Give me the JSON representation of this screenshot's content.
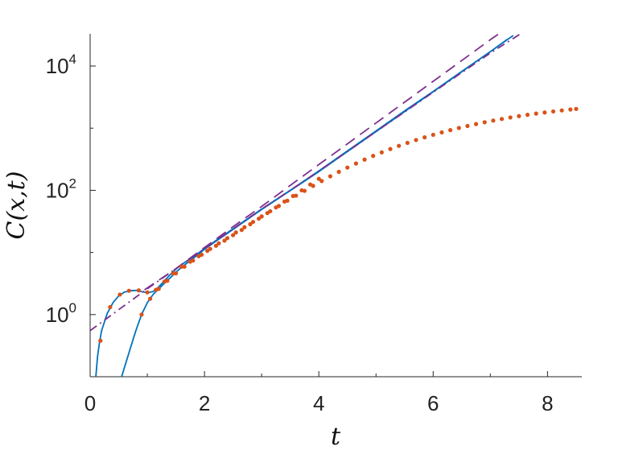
{
  "chart_data": {
    "type": "line",
    "title": "",
    "xlabel": "t",
    "ylabel": "C(x,t)",
    "xlim": [
      0,
      8.6
    ],
    "ylim": [
      0.1,
      33000
    ],
    "yscale": "log",
    "grid": false,
    "x_ticks": [
      {
        "value": 0,
        "label": "0"
      },
      {
        "value": 2,
        "label": "2"
      },
      {
        "value": 4,
        "label": "4"
      },
      {
        "value": 6,
        "label": "6"
      },
      {
        "value": 8,
        "label": "8"
      }
    ],
    "y_ticks": [
      {
        "value": 1,
        "base": "10",
        "exp": "0"
      },
      {
        "value": 100,
        "base": "10",
        "exp": "2"
      },
      {
        "value": 10000,
        "base": "10",
        "exp": "4"
      }
    ],
    "colors": {
      "solid": "#0072BD",
      "markers": "#D95319",
      "dashed": "#7E2F8E",
      "axis": "#262626"
    },
    "series": [
      {
        "style": "solid",
        "x": [
          0.1,
          0.13,
          0.16,
          0.2,
          0.3,
          0.4,
          0.5,
          0.6,
          0.7,
          0.8,
          0.9,
          1.0,
          1.1,
          1.2,
          1.3,
          1.4,
          1.5,
          1.6,
          1.8,
          2.0,
          2.2,
          2.5,
          3.0,
          3.5,
          4.0,
          4.5,
          5.0,
          5.5,
          6.0,
          6.5,
          7.0,
          7.3
        ],
        "y": [
          0.1,
          0.21,
          0.34,
          0.55,
          1.05,
          1.55,
          2.0,
          2.3,
          2.42,
          2.45,
          2.35,
          2.25,
          2.35,
          2.8,
          3.5,
          4.4,
          5.4,
          6.4,
          8.5,
          11.5,
          15.5,
          24,
          50,
          100,
          205,
          430,
          900,
          1900,
          3900,
          8200,
          17000,
          27000
        ]
      },
      {
        "style": "solid",
        "x": [
          0.55,
          0.6,
          0.7,
          0.8,
          0.9,
          1.0,
          1.1,
          1.2,
          1.3,
          1.4,
          1.5,
          1.6,
          1.8,
          2.0,
          2.2,
          2.5,
          3.0,
          3.5,
          4.0,
          4.5,
          5.0,
          5.5,
          6.0,
          6.5,
          7.0,
          7.4
        ],
        "y": [
          0.1,
          0.14,
          0.28,
          0.55,
          1.0,
          1.55,
          2.1,
          2.6,
          3.2,
          3.9,
          4.8,
          5.8,
          8.0,
          11.2,
          15.2,
          23.5,
          49,
          99,
          200,
          420,
          880,
          1850,
          3850,
          8100,
          17000,
          31000
        ]
      },
      {
        "style": "dashed",
        "x": [
          0.95,
          1.5,
          2.0,
          2.5,
          3.0,
          3.5,
          4.0,
          4.5,
          5.0,
          5.5,
          6.0,
          6.5,
          7.0,
          7.3
        ],
        "y": [
          2.5,
          5.5,
          12,
          26,
          55,
          120,
          260,
          560,
          1210,
          2620,
          5670,
          12270,
          26550,
          41000
        ]
      },
      {
        "style": "dashdot",
        "x": [
          0,
          0.5,
          1.0,
          1.5,
          2.0,
          2.5,
          3.0,
          3.5,
          4.0,
          4.5,
          5.0,
          5.5,
          6.0,
          6.5,
          7.0,
          7.55
        ],
        "y": [
          0.55,
          1.2,
          2.6,
          5.5,
          11.5,
          24,
          50,
          100,
          205,
          420,
          880,
          1820,
          3780,
          7850,
          16200,
          34000
        ]
      },
      {
        "style": "markers",
        "x": [
          0.18,
          0.35,
          0.52,
          0.68,
          0.85,
          1.0,
          1.15,
          1.3,
          1.45,
          1.6,
          1.75,
          1.9,
          2.05,
          2.2,
          2.35,
          2.5,
          2.65,
          2.8,
          2.95,
          3.1,
          3.25,
          3.4,
          3.55,
          3.7,
          3.85,
          4.0
        ],
        "y": [
          0.38,
          1.32,
          2.1,
          2.42,
          2.45,
          2.28,
          2.5,
          3.4,
          4.6,
          5.9,
          7.1,
          8.7,
          10.6,
          12.8,
          15.5,
          19,
          23,
          28.5,
          35,
          43,
          53,
          66,
          81,
          100,
          124,
          153
        ]
      },
      {
        "style": "markers",
        "x": [
          0.9,
          1.05,
          1.2,
          1.35,
          1.5,
          1.65,
          1.8,
          1.95,
          2.1,
          2.25,
          2.4,
          2.55,
          2.7,
          2.85,
          3.0,
          3.15,
          3.3,
          3.45,
          3.6,
          3.75,
          3.9,
          4.05,
          4.2,
          4.35,
          4.5,
          4.65,
          4.8,
          4.95,
          5.1,
          5.25,
          5.4,
          5.55,
          5.7,
          5.85,
          6.0,
          6.15,
          6.3,
          6.45,
          6.6,
          6.75,
          6.9,
          7.05,
          7.2,
          7.35,
          7.5,
          7.65,
          7.8,
          7.95,
          8.1,
          8.25,
          8.4,
          8.5
        ],
        "y": [
          1.0,
          1.8,
          2.6,
          3.5,
          4.6,
          5.9,
          7.4,
          9.2,
          11.4,
          14,
          17,
          21,
          25.5,
          31,
          38,
          46,
          56,
          68,
          82,
          98,
          118,
          141,
          168,
          198,
          232,
          270,
          312,
          358,
          408,
          462,
          519,
          580,
          645,
          712,
          782,
          855,
          930,
          1007,
          1085,
          1165,
          1245,
          1325,
          1405,
          1485,
          1563,
          1640,
          1715,
          1788,
          1860,
          1930,
          1998,
          2040
        ]
      }
    ]
  }
}
